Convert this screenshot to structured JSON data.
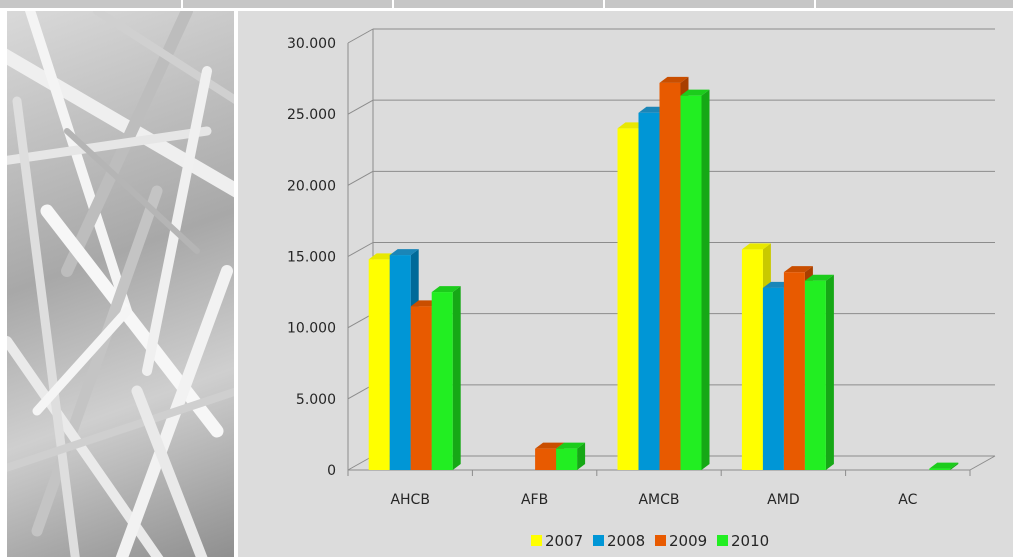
{
  "chart_data": {
    "type": "bar",
    "style": "3d-clustered-column",
    "categories": [
      "AHCB",
      "AFB",
      "AMCB",
      "AMD",
      "AC"
    ],
    "series": [
      {
        "name": "2007",
        "color": "#ffff00",
        "side": "#c9c900",
        "top": "#e8e800",
        "values": [
          14800,
          0,
          24000,
          15500,
          0
        ]
      },
      {
        "name": "2008",
        "color": "#0096d6",
        "side": "#006a99",
        "top": "#1a86b8",
        "values": [
          15100,
          0,
          25100,
          12800,
          0
        ]
      },
      {
        "name": "2009",
        "color": "#e85a00",
        "side": "#a83f00",
        "top": "#c94e00",
        "values": [
          11500,
          1500,
          27200,
          13900,
          0
        ]
      },
      {
        "name": "2010",
        "color": "#22ee22",
        "side": "#16a816",
        "top": "#1ccc1c",
        "values": [
          12500,
          1500,
          26300,
          13300,
          100
        ]
      }
    ],
    "ylim": [
      0,
      30000
    ],
    "yticks": [
      0,
      5000,
      10000,
      15000,
      20000,
      25000,
      30000
    ],
    "ytick_labels": [
      "0",
      "5.000",
      "10.000",
      "15.000",
      "20.000",
      "25.000",
      "30.000"
    ],
    "grid": true,
    "legend_position": "bottom",
    "xlabel": "",
    "ylabel": ""
  },
  "top_strip": {
    "color": "#c6c6c6"
  }
}
